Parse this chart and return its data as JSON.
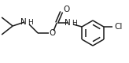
{
  "bg_color": "#ffffff",
  "line_color": "#1a1a1a",
  "text_color": "#1a1a1a",
  "figsize": [
    1.64,
    0.8
  ],
  "dpi": 100,
  "xlim": [
    0,
    164
  ],
  "ylim": [
    0,
    80
  ]
}
